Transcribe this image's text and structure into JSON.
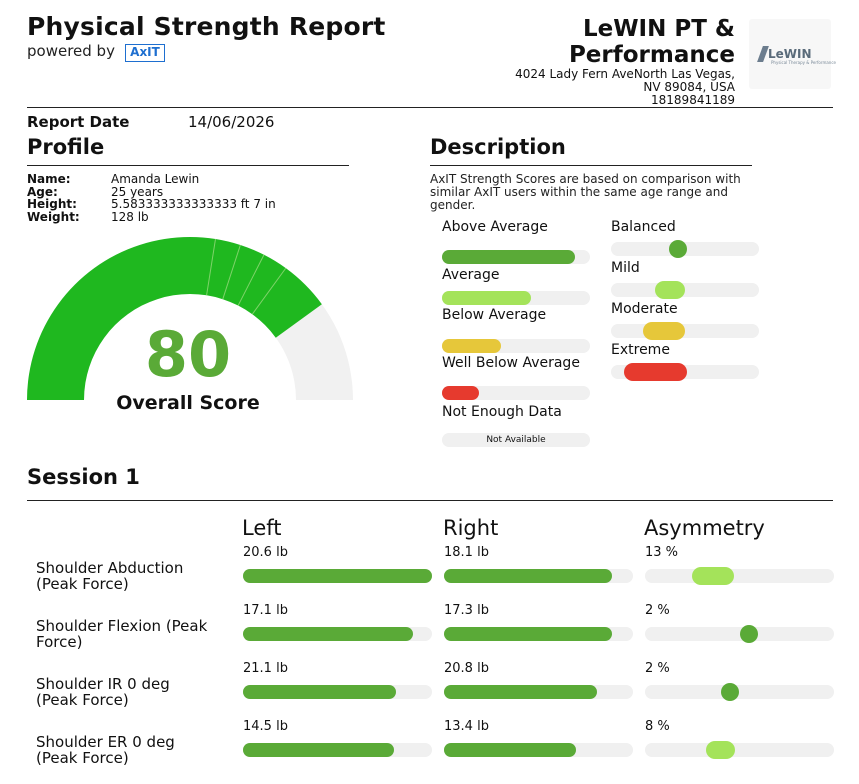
{
  "header": {
    "title": "Physical Strength Report",
    "powered_by": "powered by",
    "axit_logo": "AxIT",
    "clinic_name_line1": "LeWIN PT &",
    "clinic_name_line2": "Performance",
    "address_line1": "4024 Lady Fern AveNorth Las Vegas,",
    "address_line2": "NV 89084, USA",
    "phone": "18189841189",
    "clinic_logo_text": "LeWIN",
    "clinic_logo_sub": "Physical Therapy & Performance"
  },
  "report_date": {
    "label": "Report Date",
    "value": "14/06/2026"
  },
  "profile": {
    "heading": "Profile",
    "fields": [
      {
        "key": "Name:",
        "value": "Amanda Lewin"
      },
      {
        "key": "Age:",
        "value": "25 years"
      },
      {
        "key": "Height:",
        "value": "5.583333333333333 ft 7 in"
      },
      {
        "key": "Weight:",
        "value": "128 lb"
      }
    ]
  },
  "description": {
    "heading": "Description",
    "text": "AxIT Strength Scores are based on comparison with similar AxIT users within the same age range and gender.",
    "strength_legend": [
      {
        "label": "Above Average",
        "fill": 0.9,
        "color": "#5aaa37"
      },
      {
        "label": "Average",
        "fill": 0.6,
        "color": "#a4e35a"
      },
      {
        "label": "Below Average",
        "fill": 0.4,
        "color": "#e6c73a"
      },
      {
        "label": "Well Below Average",
        "fill": 0.25,
        "color": "#e63a2e"
      },
      {
        "label": "Not Enough Data",
        "na_text": "Not Available"
      }
    ],
    "asymmetry_legend": [
      {
        "label": "Balanced",
        "color": "#5aaa37",
        "center": 0.45,
        "width": 0.0
      },
      {
        "label": "Mild",
        "color": "#a4e35a",
        "center": 0.4,
        "width": 0.08
      },
      {
        "label": "Moderate",
        "color": "#e6c73a",
        "center": 0.36,
        "width": 0.16
      },
      {
        "label": "Extreme",
        "color": "#e63a2e",
        "center": 0.3,
        "width": 0.3
      }
    ]
  },
  "overall": {
    "score": "80",
    "label": "Overall Score",
    "score_fraction": 0.8,
    "fill_color": "#1fb81f",
    "bg_color": "#f1f1f1"
  },
  "session": {
    "heading": "Session 1",
    "columns": {
      "left": "Left",
      "right": "Right",
      "asym": "Asymmetry"
    },
    "rows": [
      {
        "name_line1": "Shoulder Abduction",
        "name_line2": "(Peak Force)",
        "left": "20.6 lb",
        "left_fill": 1.0,
        "right": "18.1 lb",
        "right_fill": 0.89,
        "asym": "13 %",
        "asym_center": 0.36,
        "asym_width": 0.13,
        "asym_color": "#a4e35a"
      },
      {
        "name_line1": "Shoulder Flexion (Peak",
        "name_line2": "Force)",
        "left": "17.1 lb",
        "left_fill": 0.9,
        "right": "17.3 lb",
        "right_fill": 0.89,
        "asym": "2 %",
        "asym_center": 0.55,
        "asym_width": 0.0,
        "asym_color": "#5aaa37"
      },
      {
        "name_line1": "Shoulder IR 0 deg",
        "name_line2": "(Peak Force)",
        "left": "21.1 lb",
        "left_fill": 0.81,
        "right": "20.8 lb",
        "right_fill": 0.81,
        "asym": "2 %",
        "asym_center": 0.45,
        "asym_width": 0.0,
        "asym_color": "#5aaa37"
      },
      {
        "name_line1": "Shoulder ER 0 deg",
        "name_line2": "(Peak Force)",
        "left": "14.5 lb",
        "left_fill": 0.8,
        "right": "13.4 lb",
        "right_fill": 0.7,
        "asym": "8 %",
        "asym_center": 0.4,
        "asym_width": 0.06,
        "asym_color": "#a4e35a"
      }
    ]
  }
}
